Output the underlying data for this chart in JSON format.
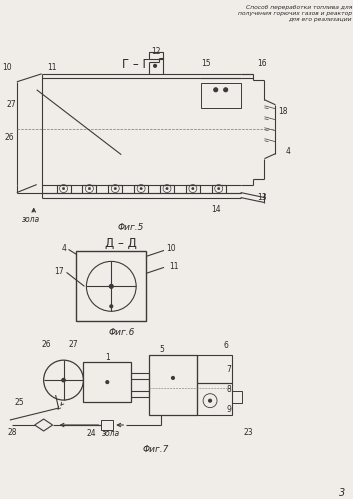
{
  "title_text": "Способ переработки топлива для\nполучения горючих газов и реактор\nдля его реализации",
  "fig5_label": "Г – Г",
  "fig5_caption": "Φиг.5",
  "fig6_label": "Д – Д",
  "fig6_caption": "Φиг.6",
  "fig7_caption": "Φиг.7",
  "page_num": "3",
  "bg_color": "#f0ede8",
  "line_color": "#3a3a3a",
  "text_color": "#2a2a2a"
}
